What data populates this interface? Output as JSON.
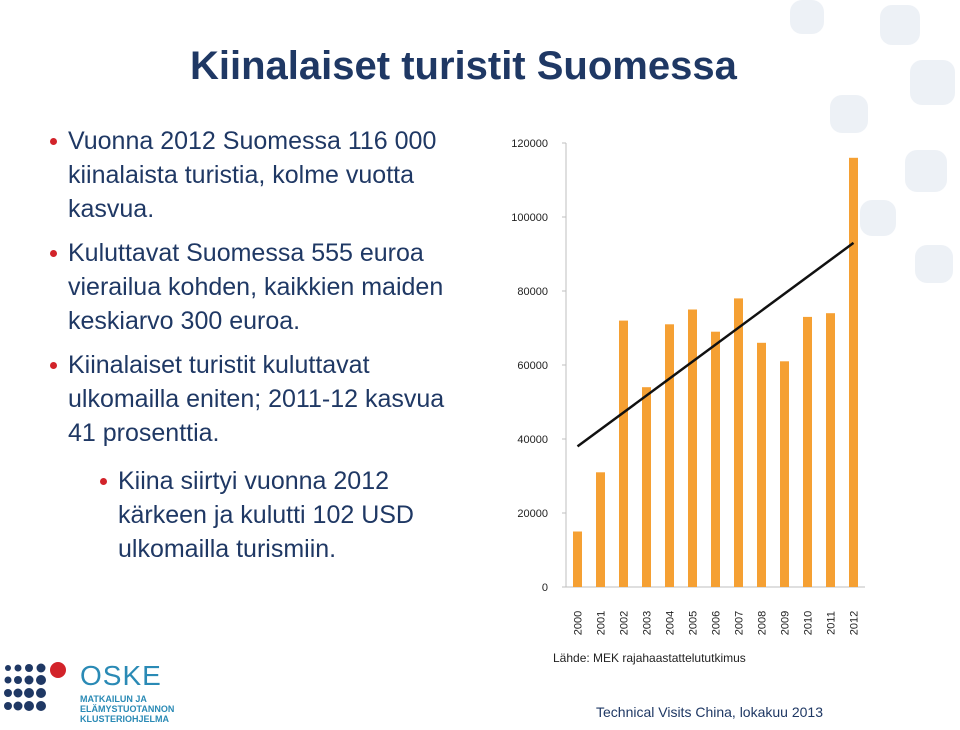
{
  "title": "Kiinalaiset turistit Suomessa",
  "bullets": [
    "Vuonna 2012 Suomessa 116 000 kiinalaista turistia, kolme vuotta kasvua.",
    "Kuluttavat Suomessa 555 euroa vierailua kohden, kaikkien maiden keskiarvo 300 euroa.",
    "Kiinalaiset turistit kuluttavat ulkomailla eniten; 2011-12 kasvua 41 prosenttia."
  ],
  "sub_bullet": "Kiina siirtyi vuonna 2012 kärkeen ja kulutti 102 USD ulkomailla turismiin.",
  "source": "Lähde: MEK rajahaastattelututkimus",
  "footer": "Technical Visits China, lokakuu 2013",
  "logo": {
    "name": "OSKE",
    "subtitle": "MATKAILUN JA ELÄMYSTUOTANNON KLUSTERIOHJELMA"
  },
  "colors": {
    "title": "#1f3864",
    "bar": "#f5a033",
    "bullet_dot": "#d2232a",
    "trendline": "#111111"
  },
  "chart_data": {
    "type": "bar",
    "title": "",
    "xlabel": "",
    "ylabel": "",
    "ylim": [
      0,
      120000
    ],
    "yticks": [
      0,
      20000,
      40000,
      60000,
      80000,
      100000,
      120000
    ],
    "categories": [
      "2000",
      "2001",
      "2002",
      "2003",
      "2004",
      "2005",
      "2006",
      "2007",
      "2008",
      "2009",
      "2010",
      "2011",
      "2012"
    ],
    "values": [
      15000,
      31000,
      72000,
      54000,
      71000,
      75000,
      69000,
      78000,
      66000,
      61000,
      73000,
      74000,
      116000
    ],
    "trendline": {
      "type": "linear",
      "from_category": "2000",
      "to_category": "2012",
      "y_start": 38000,
      "y_end": 93000
    },
    "grid": false,
    "legend": "none"
  }
}
